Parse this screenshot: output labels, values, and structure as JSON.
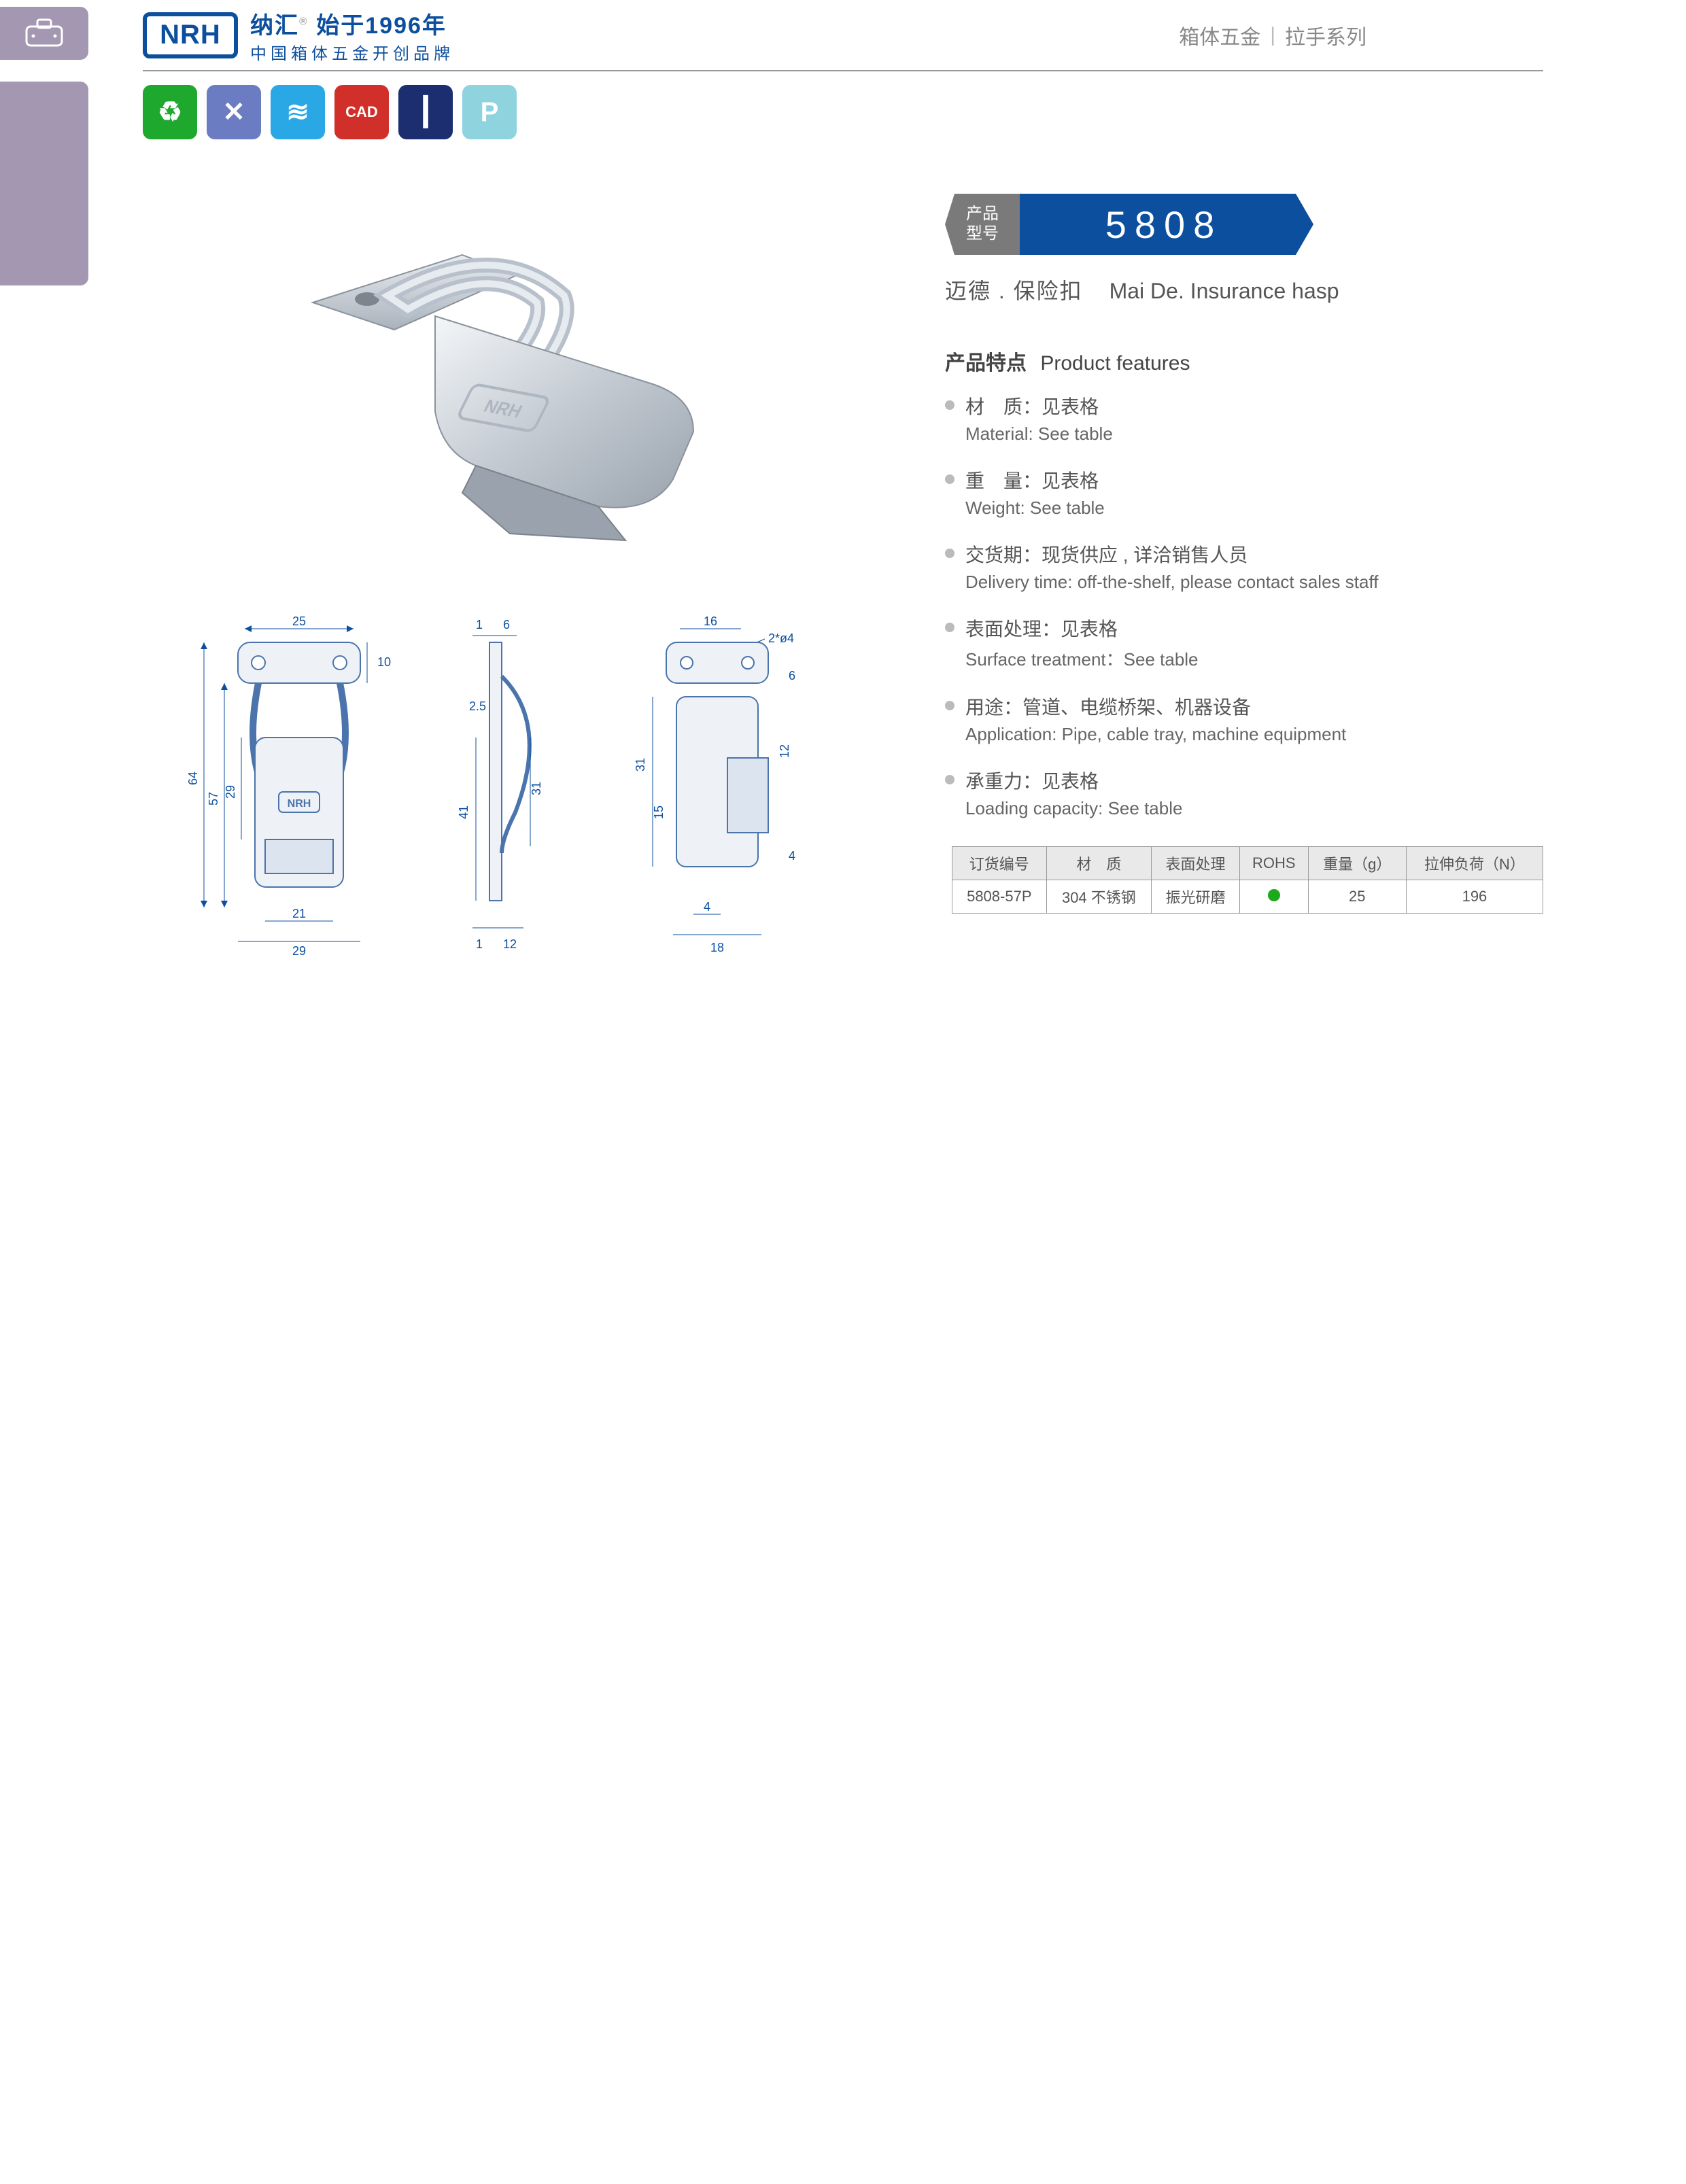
{
  "header": {
    "brand_logo_text": "NRH",
    "brand_cn_1": "纳汇",
    "brand_reg": "®",
    "brand_cn_2": "始于1996年",
    "brand_tagline": "中国箱体五金开创品牌",
    "category_1": "箱体五金",
    "category_2": "拉手系列"
  },
  "feature_icons": {
    "eco": {
      "glyph": "♻",
      "bg": "#1fa82e"
    },
    "tools": {
      "glyph": "✕",
      "bg": "#6c7cc2"
    },
    "coil": {
      "glyph": "≋",
      "bg": "#2aa8e6"
    },
    "cad": {
      "glyph": "CAD",
      "bg": "#d12f2a",
      "fontsize": "22px"
    },
    "screw": {
      "glyph": "┃",
      "bg": "#1c2d70"
    },
    "p": {
      "glyph": "P",
      "bg": "#8fd3df"
    }
  },
  "badge": {
    "left_line1": "产品",
    "left_line2": "型号",
    "model": "5808"
  },
  "subtitle": {
    "cn": "迈德 . 保险扣",
    "en": "Mai De. Insurance hasp"
  },
  "features_title": {
    "cn": "产品特点",
    "en": "Product features"
  },
  "features": [
    {
      "cn": "材　质：见表格",
      "en": "Material: See table"
    },
    {
      "cn": "重　量：见表格",
      "en": "Weight: See table"
    },
    {
      "cn": "交货期：现货供应 , 详洽销售人员",
      "en": "Delivery time: off-the-shelf, please contact sales staff"
    },
    {
      "cn": "表面处理：见表格",
      "en": "Surface treatment：See table"
    },
    {
      "cn": "用途：管道、电缆桥架、机器设备",
      "en": "Application: Pipe, cable tray, machine equipment"
    },
    {
      "cn": "承重力：见表格",
      "en": "Loading capacity: See table"
    }
  ],
  "spec_table": {
    "headers": [
      "订货编号",
      "材　质",
      "表面处理",
      "ROHS",
      "重量（g）",
      "拉伸负荷（N）"
    ],
    "rows": [
      {
        "code": "5808-57P",
        "material": "304 不锈钢",
        "surface": "振光研磨",
        "rohs": "dot",
        "weight": "25",
        "load": "196"
      }
    ]
  },
  "drawings": {
    "front": {
      "w_top": "25",
      "w_bottom_inner": "21",
      "w_bottom_outer": "29",
      "h_total": "64",
      "h_lower": "57",
      "h_slot": "29",
      "h_top_off": "10"
    },
    "side": {
      "t1": "1",
      "t6": "6",
      "t25": "2.5",
      "h31": "31",
      "h41": "41",
      "b1": "1",
      "b12": "12"
    },
    "back": {
      "w16": "16",
      "holes": "2*ø4",
      "h6": "6",
      "h31": "31",
      "h12": "12",
      "h15": "15",
      "h4": "4",
      "b4": "4",
      "b18": "18"
    },
    "dim_color": "#0b4f9e"
  }
}
